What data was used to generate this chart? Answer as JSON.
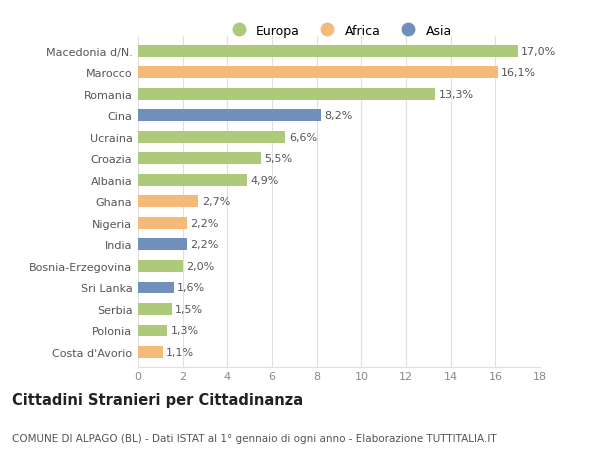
{
  "categories": [
    "Macedonia d/N.",
    "Marocco",
    "Romania",
    "Cina",
    "Ucraina",
    "Croazia",
    "Albania",
    "Ghana",
    "Nigeria",
    "India",
    "Bosnia-Erzegovina",
    "Sri Lanka",
    "Serbia",
    "Polonia",
    "Costa d'Avorio"
  ],
  "values": [
    17.0,
    16.1,
    13.3,
    8.2,
    6.6,
    5.5,
    4.9,
    2.7,
    2.2,
    2.2,
    2.0,
    1.6,
    1.5,
    1.3,
    1.1
  ],
  "labels": [
    "17,0%",
    "16,1%",
    "13,3%",
    "8,2%",
    "6,6%",
    "5,5%",
    "4,9%",
    "2,7%",
    "2,2%",
    "2,2%",
    "2,0%",
    "1,6%",
    "1,5%",
    "1,3%",
    "1,1%"
  ],
  "colors": [
    "#adc97a",
    "#f5b97a",
    "#adc97a",
    "#7090bb",
    "#adc97a",
    "#adc97a",
    "#adc97a",
    "#f5b97a",
    "#f5b97a",
    "#7090bb",
    "#adc97a",
    "#7090bb",
    "#adc97a",
    "#adc97a",
    "#f5b97a"
  ],
  "legend_labels": [
    "Europa",
    "Africa",
    "Asia"
  ],
  "legend_colors": [
    "#adc97a",
    "#f5b97a",
    "#7090bb"
  ],
  "title": "Cittadini Stranieri per Cittadinanza",
  "subtitle": "COMUNE DI ALPAGO (BL) - Dati ISTAT al 1° gennaio di ogni anno - Elaborazione TUTTITALIA.IT",
  "xlim": [
    0,
    18
  ],
  "xticks": [
    0,
    2,
    4,
    6,
    8,
    10,
    12,
    14,
    16,
    18
  ],
  "background_color": "#ffffff",
  "grid_color": "#e0e0e0",
  "bar_height": 0.55,
  "label_fontsize": 8.0,
  "tick_fontsize": 8.0,
  "title_fontsize": 10.5,
  "subtitle_fontsize": 7.5
}
